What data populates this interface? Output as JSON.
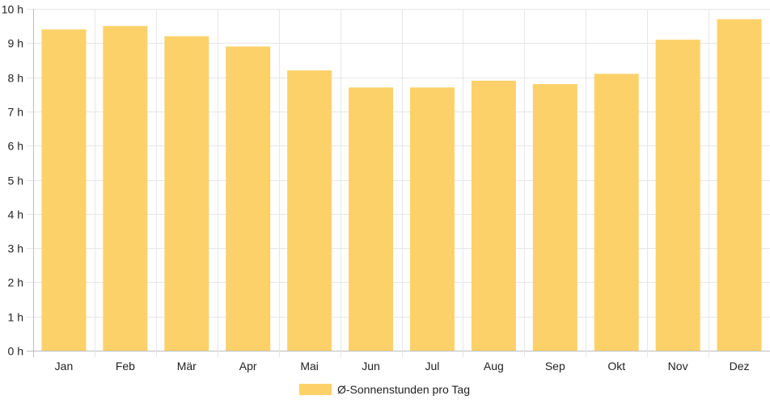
{
  "chart_data": {
    "type": "bar",
    "categories": [
      "Jan",
      "Feb",
      "Mär",
      "Apr",
      "Mai",
      "Jun",
      "Jul",
      "Aug",
      "Sep",
      "Okt",
      "Nov",
      "Dez"
    ],
    "series": [
      {
        "name": "Ø-Sonnenstunden pro Tag",
        "values": [
          9.4,
          9.5,
          9.2,
          8.9,
          8.2,
          7.7,
          7.7,
          7.9,
          7.8,
          8.1,
          9.1,
          9.7
        ],
        "color": "#fdd16a"
      }
    ],
    "y_ticks": [
      "0 h",
      "1 h",
      "2 h",
      "3 h",
      "4 h",
      "5 h",
      "6 h",
      "7 h",
      "8 h",
      "9 h",
      "10 h"
    ],
    "ylim": [
      0,
      10
    ],
    "grid": true,
    "legend_position": "bottom"
  }
}
